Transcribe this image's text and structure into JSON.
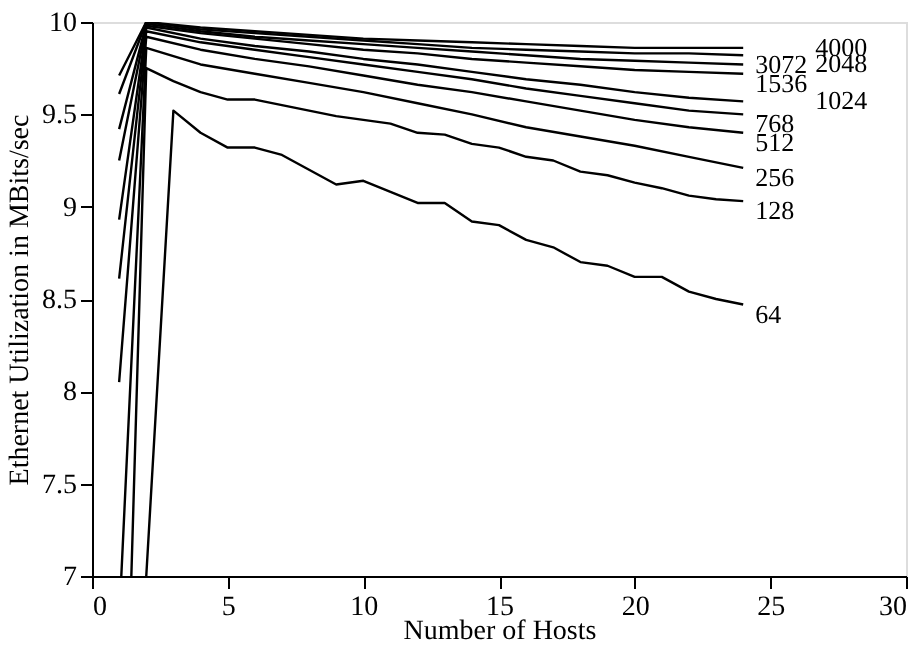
{
  "chart_data": {
    "type": "line",
    "xlabel": "Number of Hosts",
    "ylabel": "Ethernet Utilization in MBits/sec",
    "xlim": [
      0,
      30
    ],
    "xticks": [
      0,
      5,
      10,
      15,
      20,
      25,
      30
    ],
    "ylim": [
      7,
      10
    ],
    "yticks": [
      7,
      7.5,
      8,
      8.5,
      9,
      9.5,
      10
    ],
    "grid": false,
    "legend": false,
    "marker": "none",
    "line_style": "solid",
    "series": [
      {
        "name": "4000",
        "color": "#000000",
        "x": [
          1,
          2,
          4,
          6,
          8,
          10,
          12,
          14,
          16,
          18,
          20,
          22,
          24
        ],
        "values": [
          9.71,
          10.0,
          9.97,
          9.95,
          9.93,
          9.91,
          9.9,
          9.89,
          9.88,
          9.87,
          9.86,
          9.86,
          9.86
        ]
      },
      {
        "name": "3072",
        "color": "#000000",
        "x": [
          1,
          2,
          4,
          6,
          8,
          10,
          12,
          14,
          16,
          18,
          20,
          22,
          24
        ],
        "values": [
          9.61,
          10.0,
          9.96,
          9.94,
          9.92,
          9.9,
          9.88,
          9.86,
          9.85,
          9.84,
          9.83,
          9.83,
          9.82
        ]
      },
      {
        "name": "2048",
        "color": "#000000",
        "x": [
          1,
          2,
          4,
          6,
          8,
          10,
          12,
          14,
          16,
          18,
          20,
          22,
          24
        ],
        "values": [
          9.42,
          9.99,
          9.95,
          9.92,
          9.9,
          9.88,
          9.86,
          9.84,
          9.82,
          9.8,
          9.79,
          9.78,
          9.77
        ]
      },
      {
        "name": "1536",
        "color": "#000000",
        "x": [
          1,
          2,
          4,
          6,
          8,
          10,
          12,
          14,
          16,
          18,
          20,
          22,
          24
        ],
        "values": [
          9.25,
          9.98,
          9.94,
          9.91,
          9.88,
          9.85,
          9.83,
          9.8,
          9.78,
          9.76,
          9.74,
          9.73,
          9.72
        ]
      },
      {
        "name": "1024",
        "color": "#000000",
        "x": [
          1,
          2,
          4,
          6,
          8,
          10,
          12,
          14,
          16,
          18,
          20,
          22,
          24
        ],
        "values": [
          8.93,
          9.97,
          9.91,
          9.87,
          9.84,
          9.8,
          9.77,
          9.73,
          9.69,
          9.66,
          9.62,
          9.59,
          9.57
        ]
      },
      {
        "name": "768",
        "color": "#000000",
        "x": [
          1,
          2,
          4,
          6,
          8,
          10,
          12,
          14,
          16,
          18,
          20,
          22,
          24
        ],
        "values": [
          8.61,
          9.95,
          9.89,
          9.85,
          9.81,
          9.77,
          9.73,
          9.69,
          9.64,
          9.6,
          9.56,
          9.52,
          9.5
        ]
      },
      {
        "name": "512",
        "color": "#000000",
        "x": [
          1,
          2,
          4,
          6,
          8,
          10,
          12,
          14,
          16,
          18,
          20,
          22,
          24
        ],
        "values": [
          8.05,
          9.92,
          9.85,
          9.8,
          9.76,
          9.71,
          9.66,
          9.62,
          9.57,
          9.52,
          9.47,
          9.43,
          9.4
        ]
      },
      {
        "name": "256",
        "color": "#000000",
        "x": [
          1.08,
          2,
          4,
          6,
          8,
          10,
          12,
          14,
          16,
          18,
          20,
          22,
          24
        ],
        "values": [
          7.0,
          9.86,
          9.77,
          9.72,
          9.67,
          9.62,
          9.56,
          9.5,
          9.43,
          9.38,
          9.33,
          9.27,
          9.21
        ]
      },
      {
        "name": "128",
        "color": "#000000",
        "x": [
          1.45,
          2,
          3,
          4,
          5,
          6,
          7,
          8,
          9,
          10,
          11,
          12,
          13,
          14,
          15,
          16,
          17,
          18,
          19,
          20,
          21,
          22,
          23,
          24
        ],
        "values": [
          7.0,
          9.75,
          9.68,
          9.62,
          9.58,
          9.58,
          9.55,
          9.52,
          9.49,
          9.47,
          9.45,
          9.4,
          9.39,
          9.34,
          9.32,
          9.27,
          9.25,
          9.19,
          9.17,
          9.13,
          9.1,
          9.06,
          9.04,
          9.03
        ]
      },
      {
        "name": "64",
        "color": "#000000",
        "x": [
          2,
          3,
          4,
          5,
          6,
          7,
          8,
          9,
          10,
          11,
          12,
          13,
          14,
          15,
          16,
          17,
          18,
          19,
          20,
          21,
          22,
          23,
          24
        ],
        "values": [
          7.0,
          9.52,
          9.4,
          9.32,
          9.32,
          9.28,
          9.2,
          9.12,
          9.14,
          9.08,
          9.02,
          9.02,
          8.92,
          8.9,
          8.82,
          8.78,
          8.7,
          8.68,
          8.62,
          8.62,
          8.54,
          8.5,
          8.47
        ]
      }
    ]
  }
}
